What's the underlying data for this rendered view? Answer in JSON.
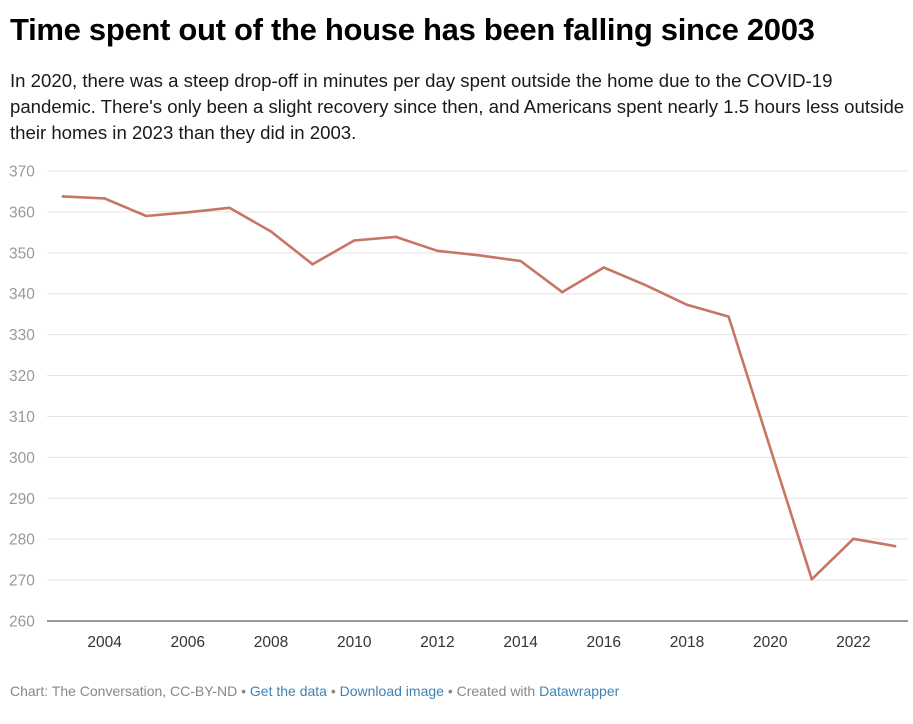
{
  "title": "Time spent out of the house has been falling since 2003",
  "subtitle": "In 2020, there was a steep drop-off in minutes per day spent outside the home due to the COVID-19 pandemic. There's only been a slight recovery since then, and Americans spent nearly 1.5 hours less outside their homes in 2023 than they did in 2003.",
  "chart_data": {
    "type": "line",
    "x": [
      2003,
      2004,
      2005,
      2006,
      2007,
      2008,
      2009,
      2010,
      2011,
      2012,
      2013,
      2014,
      2015,
      2016,
      2017,
      2018,
      2019,
      2021,
      2022,
      2023
    ],
    "series": [
      {
        "values": [
          363.8,
          363.3,
          359.0,
          359.9,
          361.0,
          355.2,
          347.2,
          353.0,
          353.9,
          350.5,
          349.4,
          348.0,
          340.4,
          346.4,
          342.1,
          337.3,
          334.4,
          270.2,
          280.1,
          278.3
        ],
        "color": "#c87566"
      }
    ],
    "yticks": [
      260,
      270,
      280,
      290,
      300,
      310,
      320,
      330,
      340,
      350,
      360,
      370
    ],
    "xticks": [
      2004,
      2006,
      2008,
      2010,
      2012,
      2014,
      2016,
      2018,
      2020,
      2022
    ],
    "ylim": [
      260,
      370
    ],
    "xlim": [
      2003,
      2023
    ],
    "grid": true,
    "xlabel": "",
    "ylabel": ""
  },
  "footer": {
    "credit": "Chart: The Conversation, CC-BY-ND",
    "sep1": " • ",
    "get_data": "Get the data",
    "sep2": " • ",
    "download": "Download image",
    "sep3": " • ",
    "created_with": "Created with ",
    "datawrapper": "Datawrapper"
  },
  "colors": {
    "line": "#c87566",
    "grid": "#e3e3e3",
    "link": "#3e82b4"
  }
}
